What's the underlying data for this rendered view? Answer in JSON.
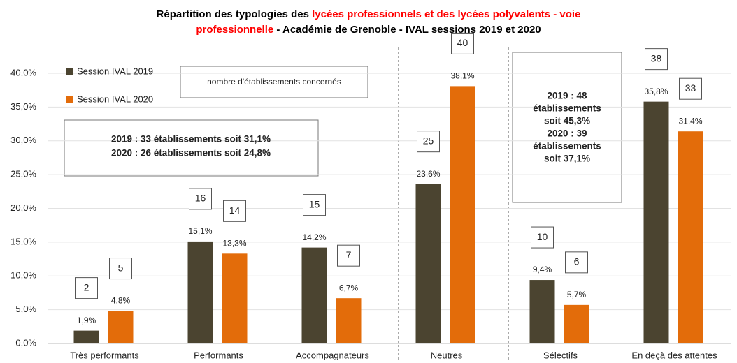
{
  "chart_data": {
    "type": "bar",
    "title_parts": [
      {
        "text": "Répartition des typologies des ",
        "color": "#000000"
      },
      {
        "text": "lycées professionnels et des lycées polyvalents - voie",
        "color": "#ff0000"
      },
      {
        "text": "professionnelle",
        "color": "#ff0000"
      },
      {
        "text": " - Académie de Grenoble - IVAL sessions 2019 et 2020",
        "color": "#000000"
      }
    ],
    "categories": [
      "Très performants",
      "Performants",
      "Accompagnateurs",
      "Neutres",
      "Sélectifs",
      "En deçà des attentes"
    ],
    "series": [
      {
        "name": "Session IVAL 2019",
        "color": "#4b4430",
        "values": [
          1.9,
          15.1,
          14.2,
          23.6,
          9.4,
          35.8
        ],
        "value_labels": [
          "1,9%",
          "15,1%",
          "14,2%",
          "23,6%",
          "9,4%",
          "35,8%"
        ],
        "counts": [
          2,
          16,
          15,
          25,
          10,
          38
        ]
      },
      {
        "name": "Session IVAL 2020",
        "color": "#e36c0a",
        "values": [
          4.8,
          13.3,
          6.7,
          38.1,
          5.7,
          31.4
        ],
        "value_labels": [
          "4,8%",
          "13,3%",
          "6,7%",
          "38,1%",
          "5,7%",
          "31,4%"
        ],
        "counts": [
          5,
          14,
          7,
          40,
          6,
          33
        ]
      }
    ],
    "ylim": [
      0,
      40
    ],
    "yticks": [
      {
        "value": 0,
        "label": "0,0%"
      },
      {
        "value": 5,
        "label": "5,0%"
      },
      {
        "value": 10,
        "label": "10,0%"
      },
      {
        "value": 15,
        "label": "15,0%"
      },
      {
        "value": 20,
        "label": "20,0%"
      },
      {
        "value": 25,
        "label": "25,0%"
      },
      {
        "value": 30,
        "label": "30,0%"
      },
      {
        "value": 35,
        "label": "35,0%"
      },
      {
        "value": 40,
        "label": "40,0%"
      }
    ],
    "grid": true,
    "annotations": {
      "count_note": "nombre d'établissements concernés",
      "box_left": [
        "2019 : 33 établissements soit 31,1%",
        "2020 : 26 établissements soit 24,8%"
      ],
      "box_right": [
        "2019 : 48",
        "établissements",
        "soit 45,3%",
        "2020 : 39",
        "établissements",
        "soit 37,1%"
      ]
    }
  }
}
